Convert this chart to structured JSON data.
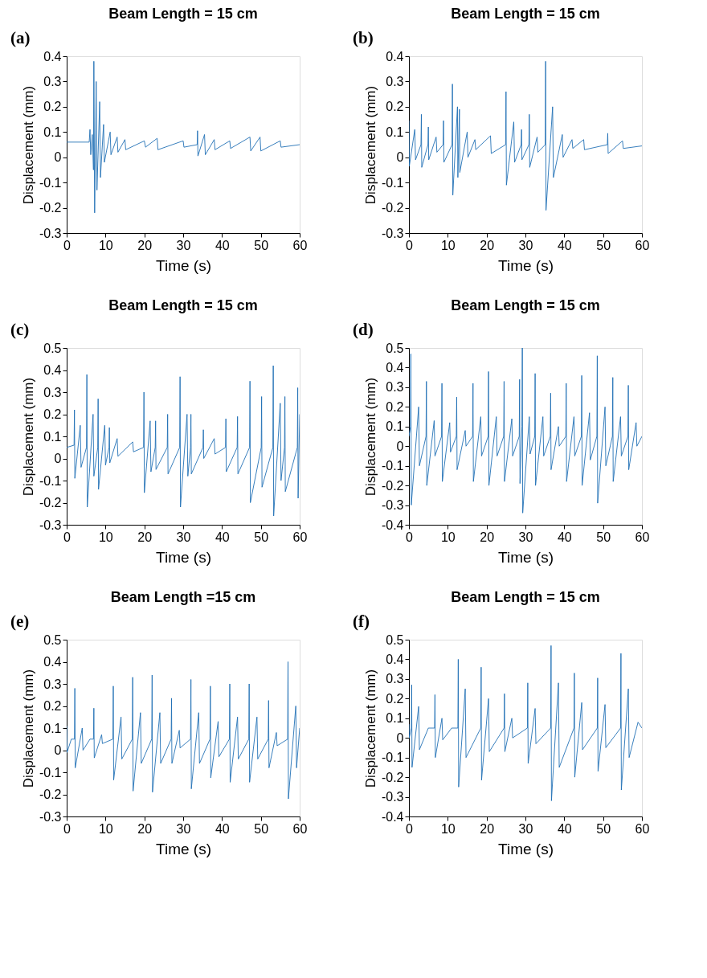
{
  "chart_data": [
    {
      "type": "line",
      "title": "Beam Length = 15 cm",
      "xlabel": "Time (s)",
      "ylabel": "Displacement (mm)",
      "annotations": [
        "(a)"
      ],
      "xlim": [
        0,
        60
      ],
      "xticks": [
        0,
        10,
        20,
        30,
        40,
        50,
        60
      ],
      "ylim": [
        -0.3,
        0.4
      ],
      "yticks": [
        -0.3,
        -0.2,
        -0.1,
        0,
        0.1,
        0.2,
        0.3,
        0.4
      ],
      "grid": false,
      "legend": false,
      "series": [
        {
          "color": "#2170b6",
          "x": [
            0,
            5.8,
            6.0,
            6.2,
            6.6,
            6.9,
            7.0,
            7.2,
            7.6,
            7.8,
            8.5,
            8.7,
            9.5,
            9.7,
            11.2,
            11.4,
            13,
            13.2,
            15,
            15.2,
            20,
            20.3,
            23.3,
            23.5,
            30,
            30.2,
            33.6,
            33.7,
            33.8,
            35.5,
            35.7,
            38,
            38.2,
            42,
            42.2,
            47.2,
            47.4,
            49.8,
            50,
            55,
            55.2,
            60
          ],
          "values": [
            0.06,
            0.06,
            0.11,
            0.01,
            0.09,
            -0.05,
            0.38,
            -0.22,
            0.3,
            -0.13,
            0.22,
            -0.08,
            0.13,
            -0.02,
            0.1,
            0.01,
            0.08,
            0.02,
            0.07,
            0.03,
            0.065,
            0.04,
            0.075,
            0.03,
            0.065,
            0.04,
            0.05,
            0.105,
            0.005,
            0.09,
            0.01,
            0.07,
            0.03,
            0.065,
            0.035,
            0.08,
            0.025,
            0.08,
            0.025,
            0.065,
            0.04,
            0.05
          ]
        }
      ]
    },
    {
      "type": "line",
      "title": "Beam Length = 15 cm",
      "xlabel": "Time (s)",
      "ylabel": "Displacement (mm)",
      "annotations": [
        "(b)"
      ],
      "xlim": [
        0,
        60
      ],
      "xticks": [
        0,
        10,
        20,
        30,
        40,
        50,
        60
      ],
      "ylim": [
        -0.3,
        0.4
      ],
      "yticks": [
        -0.3,
        -0.2,
        -0.1,
        0,
        0.1,
        0.2,
        0.3,
        0.4
      ],
      "grid": false,
      "legend": false,
      "series": [
        {
          "color": "#2170b6",
          "x": [
            0,
            0.1,
            1.5,
            1.7,
            3.1,
            3.2,
            3.3,
            4.9,
            5.0,
            5.1,
            7,
            7.2,
            8.8,
            8.9,
            9.0,
            11.1,
            11.2,
            11.3,
            12.5,
            12.6,
            13.0,
            13.1,
            15,
            15.2,
            17,
            17.2,
            21,
            21.2,
            24.9,
            25.0,
            25.1,
            27,
            27.2,
            28.9,
            29.0,
            29.1,
            30.9,
            31.0,
            31.1,
            33,
            33.2,
            35.1,
            35.2,
            35.3,
            37,
            37.2,
            39.5,
            39.7,
            42,
            42.2,
            45,
            45.2,
            51.1,
            51.2,
            51.3,
            55,
            55.2,
            60
          ],
          "values": [
            0.145,
            -0.035,
            0.11,
            -0.01,
            0.05,
            0.17,
            -0.04,
            0.05,
            0.12,
            -0.01,
            0.08,
            0.02,
            0.05,
            0.145,
            -0.02,
            0.05,
            0.29,
            -0.15,
            0.2,
            -0.08,
            0.19,
            -0.06,
            0.1,
            0.0,
            0.07,
            0.03,
            0.085,
            0.015,
            0.05,
            0.26,
            -0.11,
            0.14,
            -0.02,
            0.05,
            0.11,
            -0.01,
            0.05,
            0.17,
            -0.04,
            0.08,
            0.02,
            0.05,
            0.38,
            -0.21,
            0.2,
            -0.08,
            0.09,
            0.0,
            0.07,
            0.035,
            0.07,
            0.03,
            0.05,
            0.095,
            0.015,
            0.065,
            0.035,
            0.045
          ]
        }
      ]
    },
    {
      "type": "line",
      "title": "Beam Length = 15 cm",
      "xlabel": "Time (s)",
      "ylabel": "Displacement (mm)",
      "annotations": [
        "(c)"
      ],
      "xlim": [
        0,
        60
      ],
      "xticks": [
        0,
        10,
        20,
        30,
        40,
        50,
        60
      ],
      "ylim": [
        -0.3,
        0.5
      ],
      "yticks": [
        -0.3,
        -0.2,
        -0.1,
        0,
        0.1,
        0.2,
        0.3,
        0.4,
        0.5
      ],
      "grid": false,
      "legend": false,
      "series": [
        {
          "color": "#2170b6",
          "x": [
            0,
            1.9,
            2.0,
            2.1,
            3.5,
            3.7,
            5.1,
            5.2,
            5.3,
            6.8,
            7.0,
            8.0,
            8.1,
            8.2,
            9.8,
            10.0,
            10.9,
            11.0,
            11.1,
            13,
            13.2,
            17,
            17.2,
            19.8,
            19.9,
            20.0,
            21.5,
            21.7,
            22.8,
            22.9,
            23.0,
            25.9,
            26.0,
            26.1,
            29.1,
            29.2,
            29.3,
            31.0,
            31.2,
            31.9,
            32.0,
            32.1,
            35.1,
            35.2,
            35.3,
            38,
            38.2,
            40.9,
            41.0,
            41.1,
            43.9,
            44.0,
            44.1,
            47.1,
            47.2,
            47.3,
            50.1,
            50.2,
            50.3,
            53.1,
            53.2,
            53.3,
            55,
            55.2,
            56.1,
            56.2,
            56.3,
            59.4,
            59.5,
            59.6,
            60
          ],
          "values": [
            0.05,
            0.06,
            0.22,
            -0.09,
            0.15,
            -0.04,
            0.05,
            0.38,
            -0.22,
            0.2,
            -0.08,
            0.05,
            0.27,
            -0.14,
            0.15,
            -0.03,
            0.05,
            0.14,
            -0.02,
            0.09,
            0.01,
            0.075,
            0.03,
            0.05,
            0.3,
            -0.155,
            0.17,
            -0.06,
            0.05,
            0.17,
            -0.05,
            0.05,
            0.2,
            -0.07,
            0.05,
            0.37,
            -0.22,
            0.2,
            -0.08,
            0.05,
            0.2,
            -0.07,
            0.05,
            0.13,
            0.0,
            0.09,
            0.02,
            0.05,
            0.18,
            -0.06,
            0.05,
            0.19,
            -0.07,
            0.05,
            0.35,
            -0.2,
            0.05,
            0.28,
            -0.13,
            0.05,
            0.42,
            -0.26,
            0.25,
            -0.1,
            0.05,
            0.28,
            -0.15,
            0.05,
            0.32,
            -0.18,
            0.2
          ]
        }
      ]
    },
    {
      "type": "line",
      "title": "Beam Length = 15 cm",
      "xlabel": "Time (s)",
      "ylabel": "Displacement (mm)",
      "annotations": [
        "(d)"
      ],
      "xlim": [
        0,
        60
      ],
      "xticks": [
        0,
        10,
        20,
        30,
        40,
        50,
        60
      ],
      "ylim": [
        -0.4,
        0.5
      ],
      "yticks": [
        -0.4,
        -0.3,
        -0.2,
        -0.1,
        0,
        0.1,
        0.2,
        0.3,
        0.4,
        0.5
      ],
      "grid": false,
      "legend": false,
      "series": [
        {
          "color": "#2170b6",
          "x": [
            0,
            0.4,
            0.5,
            0.6,
            2.5,
            2.7,
            4.4,
            4.5,
            4.6,
            6.5,
            6.7,
            8.4,
            8.5,
            8.6,
            10.5,
            10.7,
            12.2,
            12.3,
            12.4,
            14.5,
            14.7,
            16.4,
            16.5,
            16.6,
            18.5,
            18.7,
            20.4,
            20.5,
            20.6,
            22.5,
            22.7,
            24.4,
            24.5,
            24.6,
            26.5,
            26.7,
            28.4,
            28.5,
            28.6,
            29.1,
            29.2,
            29.3,
            31,
            31.2,
            32.4,
            32.5,
            32.6,
            34.5,
            34.7,
            36.4,
            36.5,
            36.6,
            38.5,
            38.7,
            40.4,
            40.5,
            40.6,
            42.5,
            42.7,
            44.4,
            44.5,
            44.6,
            46.5,
            46.7,
            48.4,
            48.5,
            48.6,
            50.5,
            50.7,
            52.4,
            52.5,
            52.6,
            54.5,
            54.7,
            56.4,
            56.5,
            56.6,
            58.5,
            58.7,
            60
          ],
          "values": [
            0.05,
            0.1,
            0.47,
            -0.3,
            0.2,
            -0.1,
            0.05,
            0.33,
            -0.2,
            0.13,
            -0.05,
            0.05,
            0.32,
            -0.18,
            0.12,
            -0.03,
            0.05,
            0.25,
            -0.12,
            0.08,
            0.0,
            0.05,
            0.32,
            -0.18,
            0.15,
            -0.05,
            0.05,
            0.38,
            -0.2,
            0.15,
            -0.05,
            0.05,
            0.33,
            -0.18,
            0.14,
            -0.05,
            0.05,
            0.34,
            -0.19,
            0.1,
            0.5,
            -0.34,
            0.15,
            -0.04,
            0.05,
            0.37,
            -0.2,
            0.15,
            -0.05,
            0.05,
            0.27,
            -0.12,
            0.1,
            0.0,
            0.05,
            0.32,
            -0.18,
            0.15,
            -0.05,
            0.05,
            0.36,
            -0.2,
            0.17,
            -0.07,
            0.05,
            0.46,
            -0.29,
            0.2,
            -0.1,
            0.05,
            0.35,
            -0.18,
            0.15,
            -0.05,
            0.05,
            0.31,
            -0.12,
            0.12,
            0.0,
            0.05
          ]
        }
      ]
    },
    {
      "type": "line",
      "title": "Beam Length =15 cm",
      "xlabel": "Time (s)",
      "ylabel": "Displacement (mm)",
      "annotations": [
        "(e)"
      ],
      "xlim": [
        0,
        60
      ],
      "xticks": [
        0,
        10,
        20,
        30,
        40,
        50,
        60
      ],
      "ylim": [
        -0.3,
        0.5
      ],
      "yticks": [
        -0.3,
        -0.2,
        -0.1,
        0,
        0.1,
        0.2,
        0.3,
        0.4,
        0.5
      ],
      "grid": false,
      "legend": false,
      "series": [
        {
          "color": "#2170b6",
          "x": [
            0,
            0.1,
            1.2,
            2.0,
            2.1,
            2.2,
            4,
            4.2,
            6,
            6.9,
            7.0,
            7.1,
            9,
            9.2,
            11.9,
            12.0,
            12.1,
            14,
            14.2,
            16.9,
            17.0,
            17.1,
            19,
            19.2,
            21.9,
            22.0,
            22.1,
            24,
            24.2,
            26.9,
            27.0,
            27.1,
            29,
            29.2,
            31.9,
            32.0,
            32.1,
            34,
            34.2,
            36.9,
            37.0,
            37.1,
            39,
            39.2,
            41.9,
            42.0,
            42.1,
            44,
            44.2,
            46.9,
            47.0,
            47.1,
            49,
            49.2,
            51.9,
            52.0,
            52.1,
            54,
            54.2,
            56.9,
            57.0,
            57.1,
            59,
            59.2,
            60
          ],
          "values": [
            0.11,
            -0.01,
            0.05,
            0.05,
            0.28,
            -0.08,
            0.1,
            0.0,
            0.05,
            0.05,
            0.19,
            -0.035,
            0.07,
            0.03,
            0.05,
            0.29,
            -0.135,
            0.15,
            -0.04,
            0.05,
            0.33,
            -0.185,
            0.17,
            -0.06,
            0.05,
            0.34,
            -0.19,
            0.17,
            -0.06,
            0.05,
            0.235,
            -0.06,
            0.09,
            0.01,
            0.05,
            0.32,
            -0.175,
            0.17,
            -0.06,
            0.05,
            0.29,
            -0.125,
            0.13,
            -0.03,
            0.05,
            0.3,
            -0.145,
            0.15,
            -0.04,
            0.05,
            0.3,
            -0.145,
            0.15,
            -0.04,
            0.05,
            0.225,
            -0.08,
            0.08,
            0.02,
            0.05,
            0.4,
            -0.22,
            0.2,
            -0.08,
            0.1
          ]
        }
      ]
    },
    {
      "type": "line",
      "title": "Beam Length = 15 cm",
      "xlabel": "Time (s)",
      "ylabel": "Displacement (mm)",
      "annotations": [
        "(f)"
      ],
      "xlim": [
        0,
        60
      ],
      "xticks": [
        0,
        10,
        20,
        30,
        40,
        50,
        60
      ],
      "ylim": [
        -0.4,
        0.5
      ],
      "yticks": [
        -0.4,
        -0.3,
        -0.2,
        -0.1,
        0,
        0.1,
        0.2,
        0.3,
        0.4,
        0.5
      ],
      "grid": false,
      "legend": false,
      "series": [
        {
          "color": "#2170b6",
          "x": [
            0,
            0.1,
            0.6,
            0.7,
            0.8,
            2.5,
            2.7,
            5,
            6.6,
            6.7,
            6.8,
            8.5,
            8.7,
            11,
            12.6,
            12.7,
            12.8,
            14.5,
            14.7,
            18.5,
            18.6,
            18.7,
            20.5,
            20.7,
            24.5,
            24.6,
            24.7,
            26.5,
            26.7,
            30.5,
            30.6,
            30.7,
            32.5,
            32.7,
            36.5,
            36.6,
            36.7,
            38.5,
            38.7,
            42.5,
            42.6,
            42.7,
            44.5,
            44.7,
            48.5,
            48.6,
            48.7,
            50.5,
            50.7,
            54.5,
            54.6,
            54.7,
            56.5,
            56.7,
            59,
            60
          ],
          "values": [
            0.07,
            0.0,
            0.05,
            0.27,
            -0.15,
            0.16,
            -0.06,
            0.05,
            0.05,
            0.22,
            -0.1,
            0.1,
            -0.01,
            0.05,
            0.05,
            0.4,
            -0.25,
            0.25,
            -0.1,
            0.05,
            0.36,
            -0.215,
            0.2,
            -0.07,
            0.05,
            0.225,
            -0.07,
            0.1,
            0.0,
            0.05,
            0.28,
            -0.13,
            0.15,
            -0.03,
            0.05,
            0.47,
            -0.32,
            0.28,
            -0.15,
            0.05,
            0.33,
            -0.2,
            0.18,
            -0.06,
            0.05,
            0.305,
            -0.17,
            0.17,
            -0.05,
            0.05,
            0.43,
            -0.265,
            0.25,
            -0.1,
            0.08,
            0.05
          ]
        }
      ]
    }
  ]
}
